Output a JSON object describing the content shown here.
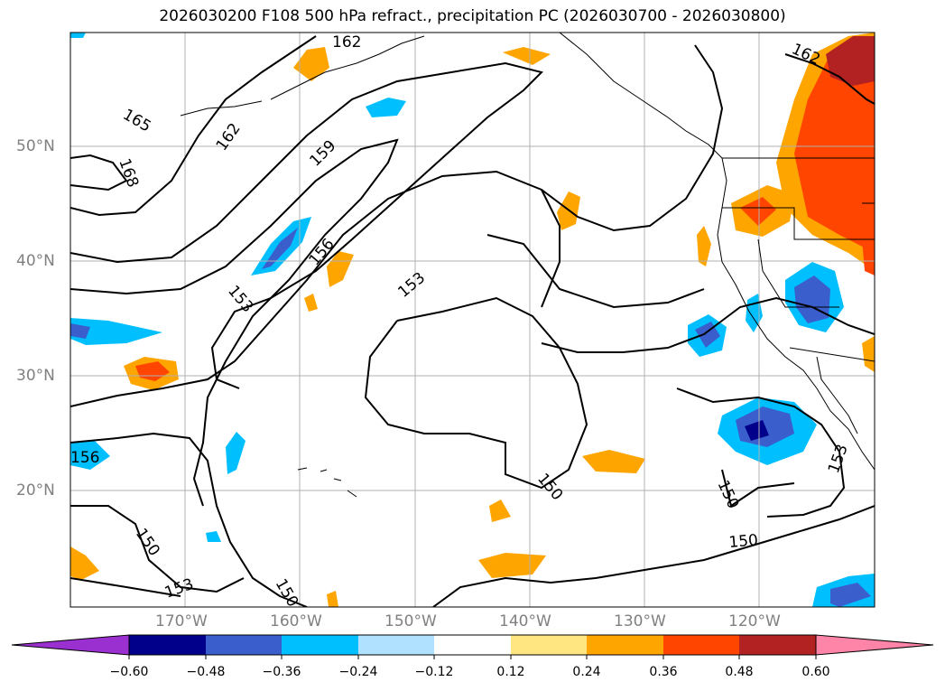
{
  "title": "2026030200 F108 500 hPa refract., precipitation PC (2026030700 - 2026030800)",
  "map": {
    "lat_ticks": [
      "50°N",
      "40°N",
      "30°N",
      "20°N"
    ],
    "lon_ticks": [
      "170°W",
      "160°W",
      "150°W",
      "140°W",
      "130°W",
      "120°W"
    ],
    "contour_labels": [
      "162",
      "165",
      "168",
      "162",
      "159",
      "156",
      "153",
      "153",
      "156",
      "150",
      "150",
      "150",
      "150",
      "153",
      "150",
      "162",
      "153"
    ]
  },
  "colorbar": {
    "ticks": [
      "−0.60",
      "−0.48",
      "−0.36",
      "−0.24",
      "−0.12",
      "0.12",
      "0.24",
      "0.36",
      "0.48",
      "0.60"
    ],
    "colors": [
      "#9b30d0",
      "#00008b",
      "#3a5fcd",
      "#00bfff",
      "#b0e2ff",
      "#ffffff",
      "#ffe680",
      "#ffa500",
      "#ff4500",
      "#b22222",
      "#ff85a8"
    ]
  }
}
